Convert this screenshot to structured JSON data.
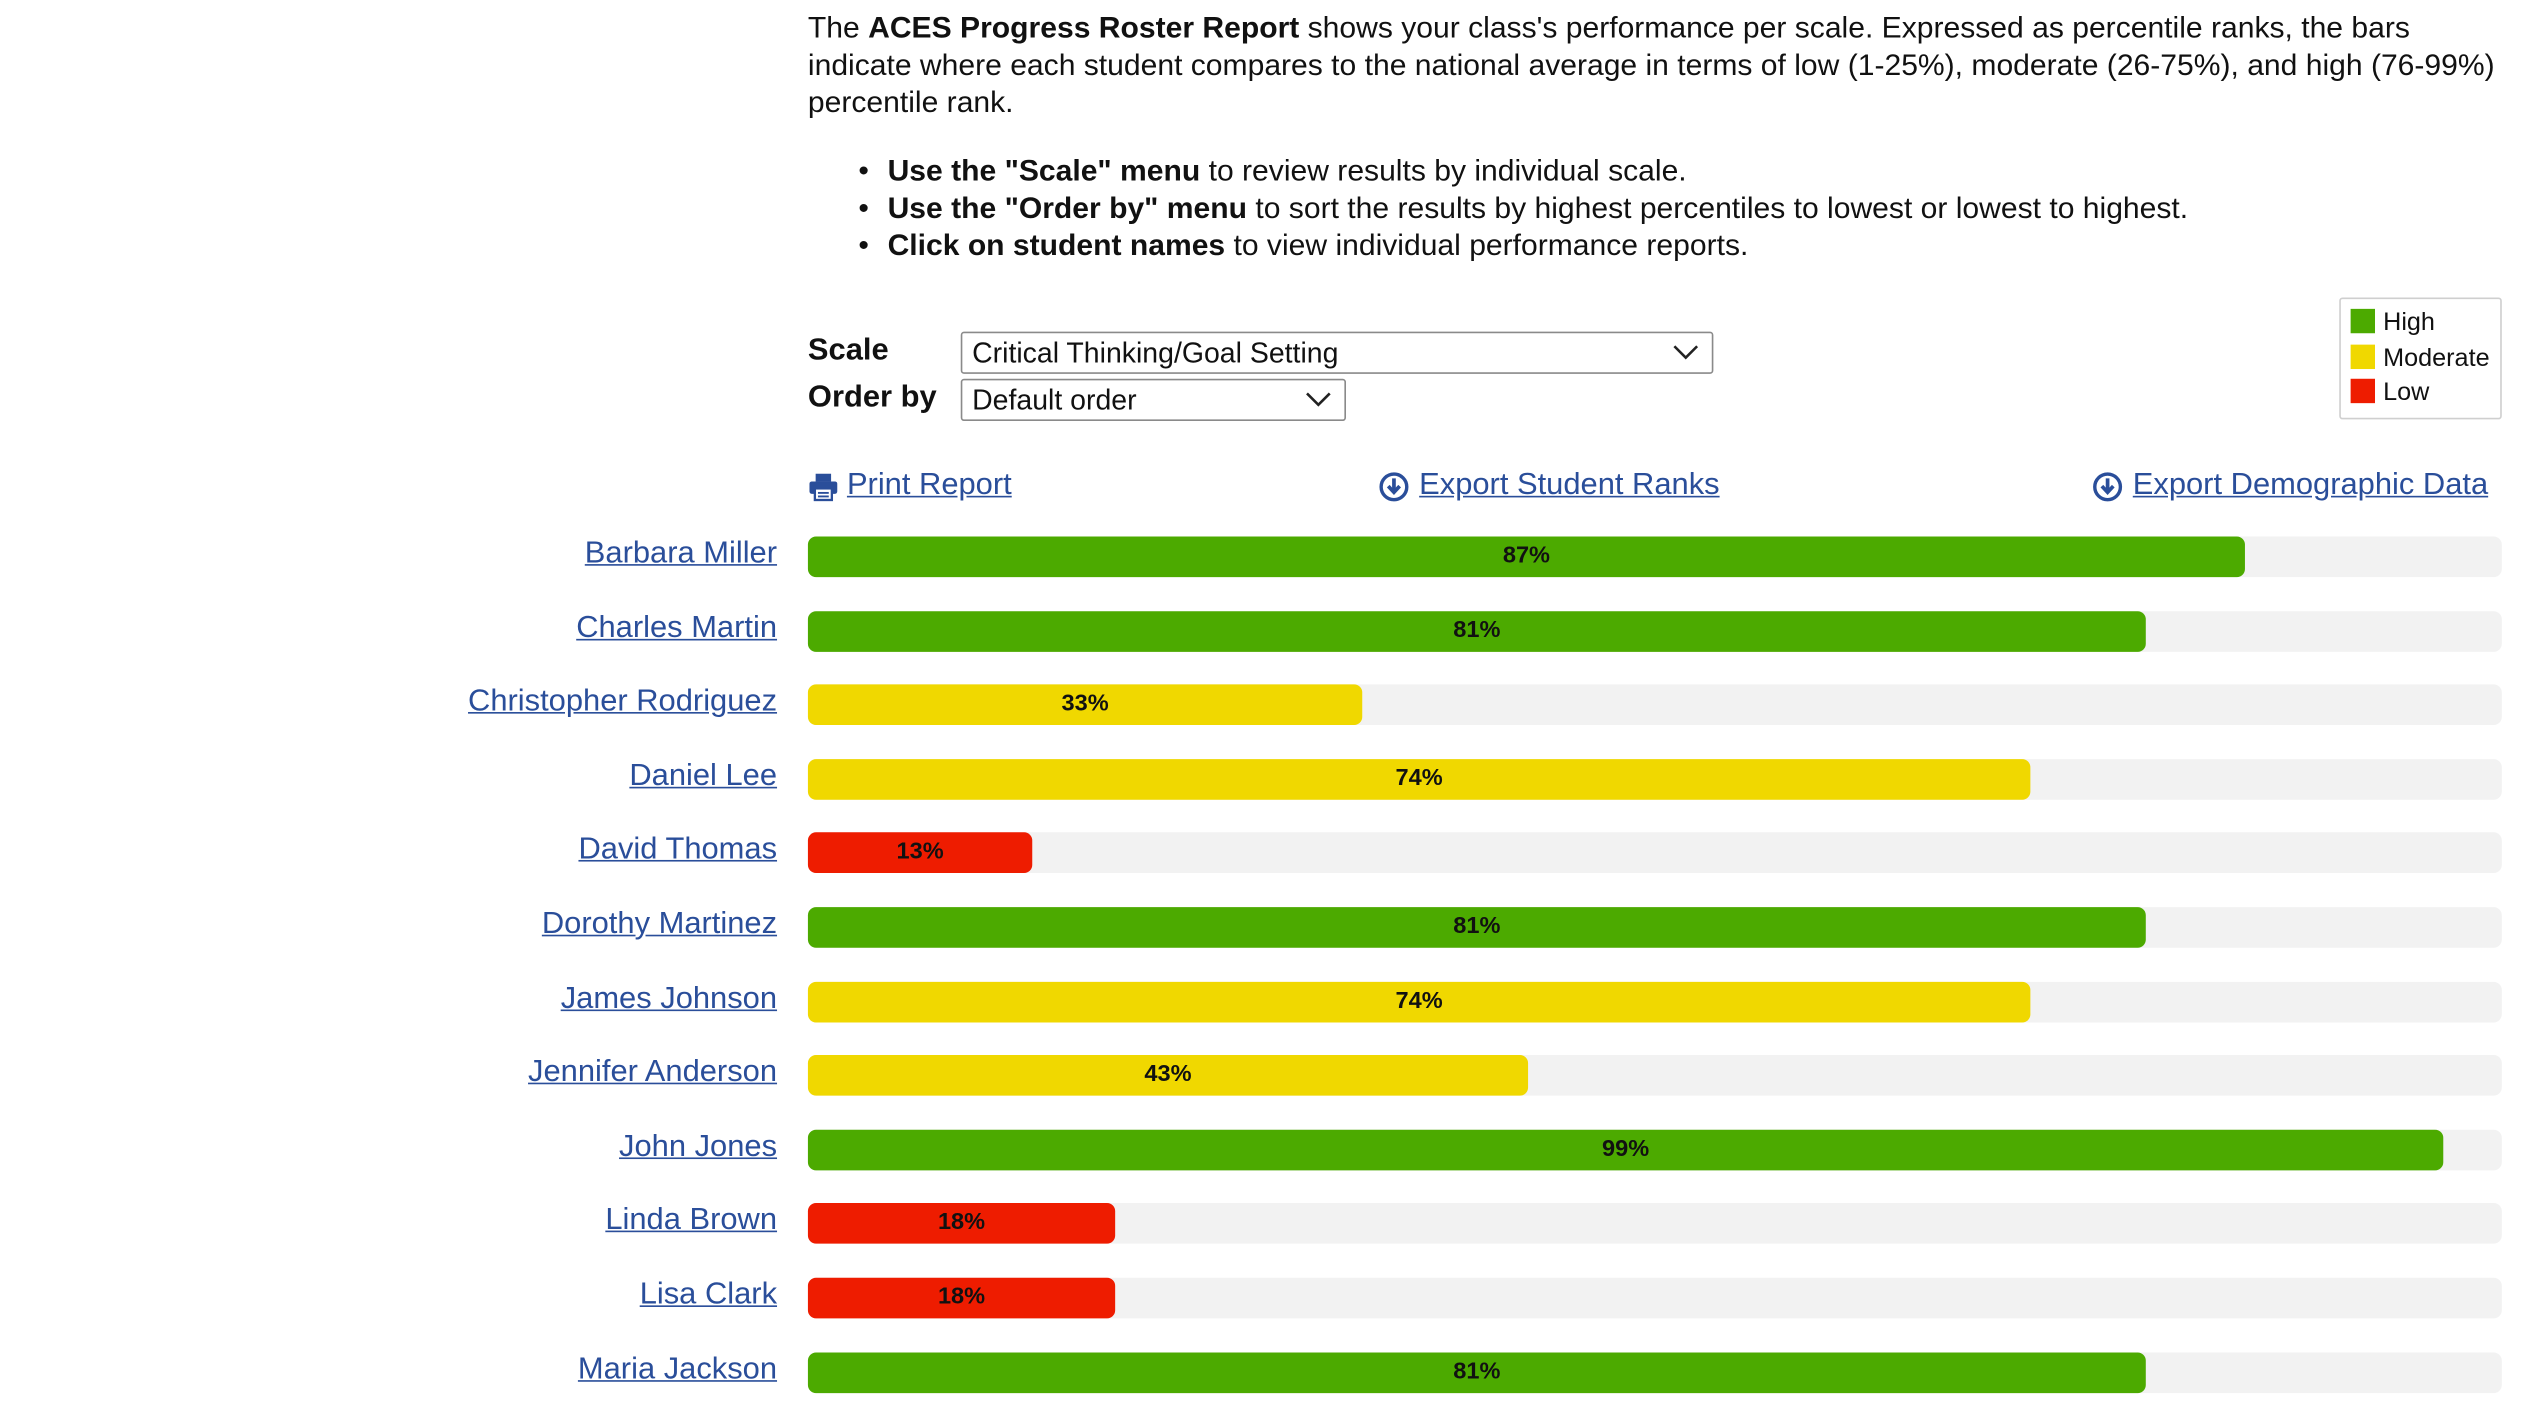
{
  "intro": {
    "pre": "The ",
    "report_name": "ACES Progress Roster Report",
    "post": " shows your class's performance per scale. Expressed as percentile ranks, the bars indicate where each student compares to the national average in terms of low (1-25%), moderate (26-75%), and high (76-99%) percentile rank."
  },
  "bullets": [
    {
      "strong": "Use the \"Scale\" menu",
      "rest": " to review results by individual scale."
    },
    {
      "strong": "Use the \"Order by\" menu",
      "rest": " to sort the results by highest percentiles to lowest or lowest to highest."
    },
    {
      "strong": "Click on student names",
      "rest": " to view individual performance reports."
    }
  ],
  "controls": {
    "scale_label": "Scale",
    "scale_value": "Critical Thinking/Goal Setting",
    "order_label": "Order by",
    "order_value": "Default order"
  },
  "legend": {
    "items": [
      {
        "label": "High",
        "color": "#4caa00"
      },
      {
        "label": "Moderate",
        "color": "#f0d800"
      },
      {
        "label": "Low",
        "color": "#ee1c00"
      }
    ]
  },
  "actions": {
    "print": "Print Report",
    "export_ranks": "Export Student Ranks",
    "export_demographic": "Export Demographic Data"
  },
  "colors": {
    "link": "#2a4e9a",
    "track": "#f2f2f2",
    "high": "#4caa00",
    "moderate": "#f0d800",
    "low": "#ee1c00"
  },
  "students": [
    {
      "name": "Barbara Miller",
      "percentile": 87,
      "label": "87%",
      "level": "high"
    },
    {
      "name": "Charles Martin",
      "percentile": 81,
      "label": "81%",
      "level": "high"
    },
    {
      "name": "Christopher Rodriguez",
      "percentile": 33,
      "label": "33%",
      "level": "moderate"
    },
    {
      "name": "Daniel Lee",
      "percentile": 74,
      "label": "74%",
      "level": "moderate"
    },
    {
      "name": "David Thomas",
      "percentile": 13,
      "label": "13%",
      "level": "low"
    },
    {
      "name": "Dorothy Martinez",
      "percentile": 81,
      "label": "81%",
      "level": "high"
    },
    {
      "name": "James Johnson",
      "percentile": 74,
      "label": "74%",
      "level": "moderate"
    },
    {
      "name": "Jennifer Anderson",
      "percentile": 43,
      "label": "43%",
      "level": "moderate"
    },
    {
      "name": "John Jones",
      "percentile": 99,
      "label": "99%",
      "level": "high"
    },
    {
      "name": "Linda Brown",
      "percentile": 18,
      "label": "18%",
      "level": "low"
    },
    {
      "name": "Lisa Clark",
      "percentile": 18,
      "label": "18%",
      "level": "low"
    },
    {
      "name": "Maria Jackson",
      "percentile": 81,
      "label": "81%",
      "level": "high"
    }
  ]
}
